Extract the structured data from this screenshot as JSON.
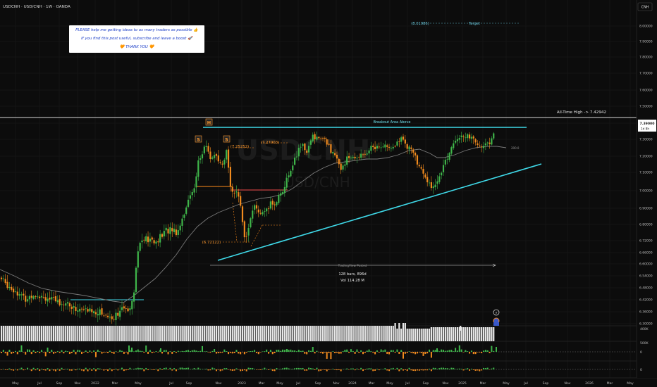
{
  "header": {
    "symbol_line": "USDCNH · USD/CNH · 1W · OANDA",
    "currency_button": "CNH"
  },
  "note": {
    "line1": "PLEASE help me getting ideas to as many traders as possible 👍",
    "line2": "If you find this post useful, subscribe and leave a boost 🚀",
    "line3": "🧡 THANK YOU 🧡"
  },
  "annotations": {
    "target_value": "(8.01986)",
    "target_label": "Target",
    "ath_label": "All-Time High -> 7.42942",
    "breakout_label": "Breakout Area Above",
    "h_marker": "H",
    "s_marker": "S",
    "level_1": "(7.25252)",
    "level_2": "(7.27903)",
    "level_3": "(6.72122)",
    "ma_tag": "200.0",
    "watermark_1": "USDCNH",
    "watermark_2": "USD/CNH",
    "measure_title": "TradingView Posted",
    "measure_bars": "128 bars, 896d",
    "measure_vol": "Vol 114.28 M",
    "price_tag": "7.39000",
    "price_tag_sub": "1d 8h"
  },
  "panels": {
    "volume_scale": "400K",
    "osc1_scale_top": "500K",
    "osc1_scale_zero": "0",
    "osc2_scale_zero": "0"
  },
  "chart_data": {
    "type": "candlestick",
    "symbol": "USDCNH",
    "timeframe": "1W",
    "y_axis": {
      "ticks": [
        8.0,
        7.9,
        7.8,
        7.7,
        7.6,
        7.5,
        7.4,
        7.3,
        7.2,
        7.1,
        7.0,
        6.9,
        6.8,
        6.72,
        6.66,
        6.6,
        6.54,
        6.48,
        6.42,
        6.36,
        6.3
      ],
      "tick_labels": [
        "8.00000",
        "7.90000",
        "7.80000",
        "7.70000",
        "7.60000",
        "7.50000",
        "7.40000",
        "7.30000",
        "7.20000",
        "7.10000",
        "7.00000",
        "6.90000",
        "6.80000",
        "6.72000",
        "6.66000",
        "6.60000",
        "6.54000",
        "6.48000",
        "6.42000",
        "6.36000",
        "6.30000"
      ],
      "range": [
        6.27,
        8.05
      ]
    },
    "x_axis": {
      "tick_labels": [
        "May",
        "Jul",
        "Sep",
        "Nov",
        "2022",
        "Mar",
        "May",
        "Jul",
        "Sep",
        "Nov",
        "2023",
        "Mar",
        "May",
        "Jul",
        "Sep",
        "Nov",
        "2024",
        "Mar",
        "May",
        "Jul",
        "Sep",
        "Nov",
        "2025",
        "Mar",
        "May",
        "Jul",
        "Sep",
        "Nov",
        "2026",
        "Mar",
        "May"
      ]
    },
    "key_levels": {
      "all_time_high": 7.42942,
      "target": 8.01986,
      "breakout_resistance": 7.3705,
      "support_2022": 6.382,
      "levels": [
        7.25252,
        7.27903,
        6.72122
      ]
    },
    "trendline": {
      "start": [
        "Nov 2022",
        6.65
      ],
      "end": [
        "May 2025",
        7.16
      ]
    },
    "measure": {
      "bars": 128,
      "days": 896,
      "volume_m": 114.28
    },
    "last_price": 7.39
  }
}
